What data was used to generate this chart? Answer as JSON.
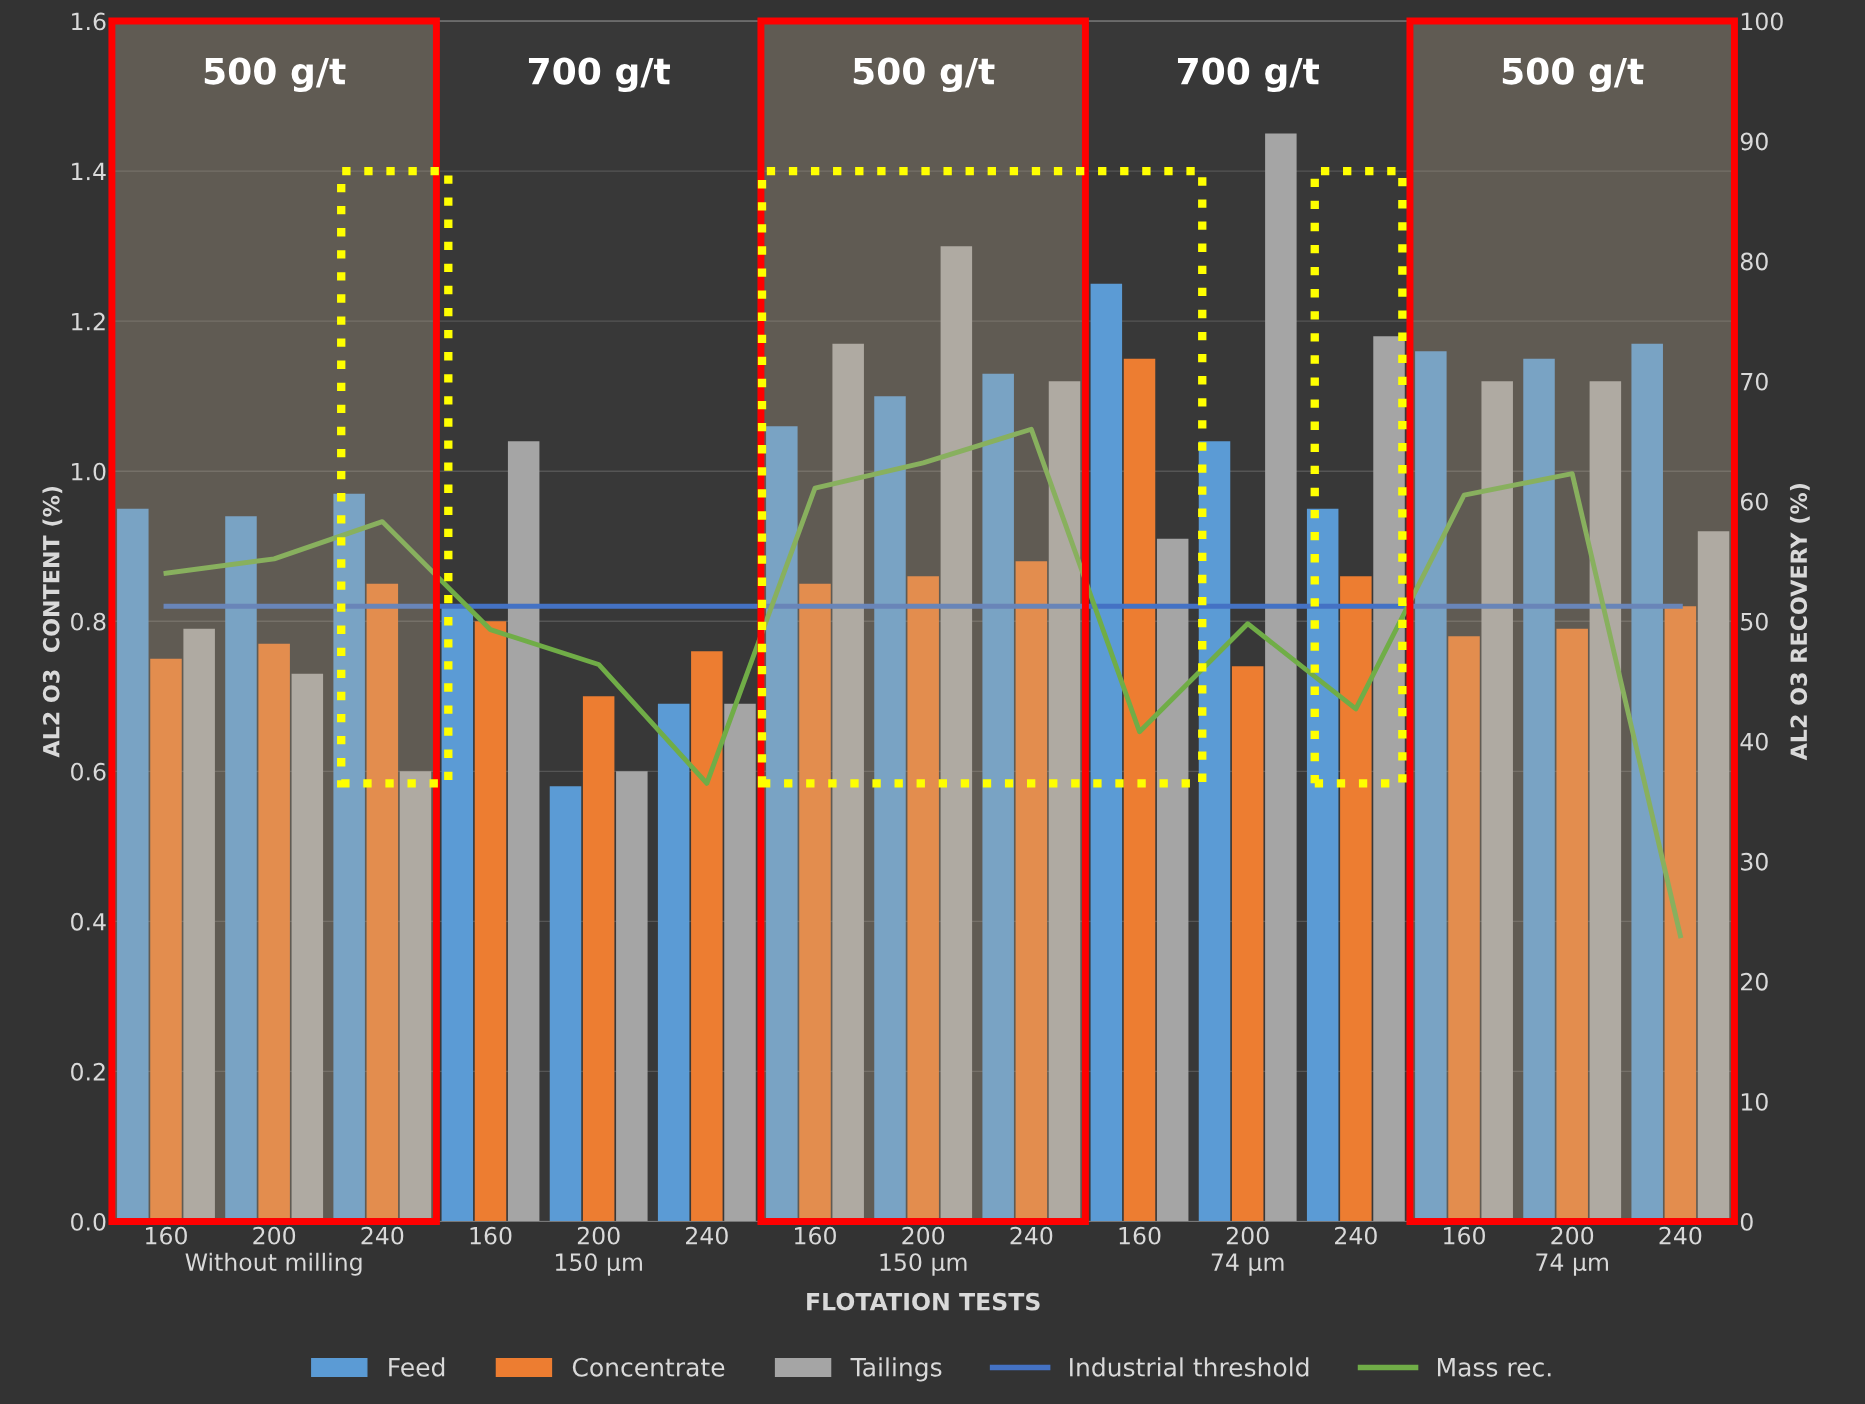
{
  "chart_data": {
    "type": "bar",
    "xlabel": "FLOTATION TESTS",
    "ylabel": "AL2 O3  CONTENT (%)",
    "y2label": "AL2 O3 RECOVERY (%)",
    "annotations": [
      "500 g/t",
      "700 g/t",
      "500 g/t",
      "700 g/t",
      "500 g/t"
    ],
    "categories": [
      "160",
      "200\nWithout milling",
      "240",
      "160",
      "200\n150 µm",
      "240",
      "160",
      "200\n150 µm",
      "240",
      "160",
      "200\n74 µm",
      "240",
      "160",
      "200\n74 µm",
      "240"
    ],
    "series": [
      {
        "name": "Feed",
        "color": "#5b9bd5",
        "values": [
          0.95,
          0.94,
          0.97,
          0.82,
          0.58,
          0.69,
          1.06,
          1.1,
          1.13,
          1.25,
          1.04,
          0.95,
          1.16,
          1.15,
          1.17
        ]
      },
      {
        "name": "Concentrate",
        "color": "#ed7d31",
        "values": [
          0.75,
          0.77,
          0.85,
          0.8,
          0.7,
          0.76,
          0.85,
          0.86,
          0.88,
          1.15,
          0.74,
          0.86,
          0.78,
          0.79,
          0.82
        ]
      },
      {
        "name": "Tailings",
        "color": "#a5a5a5",
        "values": [
          0.79,
          0.73,
          0.6,
          1.04,
          0.6,
          0.69,
          1.17,
          1.3,
          1.12,
          0.91,
          1.45,
          1.18,
          1.12,
          1.12,
          0.92
        ]
      },
      {
        "name": "Industrial threshold",
        "type": "line",
        "color": "#4472c4",
        "values": [
          0.82,
          0.82,
          0.82,
          0.82,
          0.82,
          0.82,
          0.82,
          0.82,
          0.82,
          0.82,
          0.82,
          0.82,
          0.82,
          0.82,
          0.82
        ]
      },
      {
        "name": "Mass rec.",
        "type": "line",
        "axis": "y2",
        "color": "#70ad47",
        "values": [
          54,
          55.2,
          58.3,
          49.3,
          46.4,
          36.5,
          61.1,
          63.2,
          66,
          40.8,
          49.8,
          42.7,
          60.5,
          62.3,
          23.8
        ]
      }
    ],
    "ylim": [
      0,
      1.6
    ],
    "yticks": [
      {
        "value": 0,
        "label": "0.0"
      },
      0.2,
      0.4,
      0.6,
      0.8,
      {
        "value": 1,
        "label": "1.0"
      },
      1.2,
      1.4,
      1.6
    ],
    "y2lim": [
      0,
      100
    ],
    "y2ticks": [
      0,
      10,
      20,
      30,
      40,
      50,
      60,
      70,
      80,
      90,
      100
    ],
    "grid": "y",
    "legend": "bottom"
  }
}
